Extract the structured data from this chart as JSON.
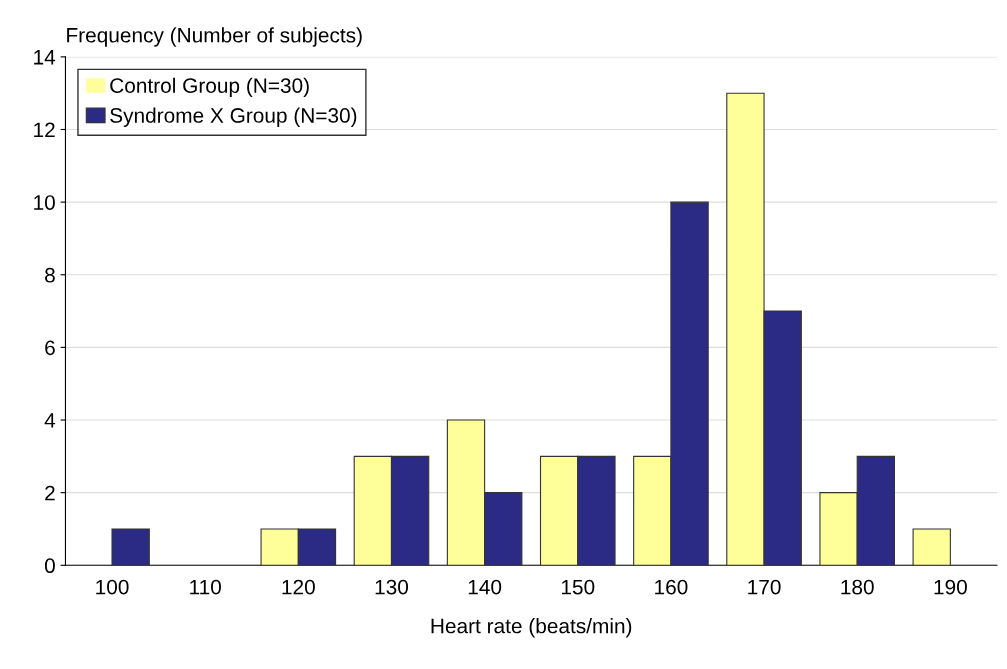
{
  "chart_data": {
    "type": "bar",
    "xlabel": "Heart rate (beats/min)",
    "ylabel": "Frequency (Number of subjects)",
    "categories": [
      "100",
      "110",
      "120",
      "130",
      "140",
      "150",
      "160",
      "170",
      "180",
      "190"
    ],
    "series": [
      {
        "name": "Control Group (N=30)",
        "color": "#ffff99",
        "values": [
          0,
          0,
          1,
          3,
          4,
          3,
          3,
          13,
          2,
          1
        ]
      },
      {
        "name": "Syndrome X Group (N=30)",
        "color": "#2b2b86",
        "values": [
          1,
          0,
          1,
          3,
          2,
          3,
          10,
          7,
          3,
          0
        ]
      }
    ],
    "ylim": [
      0,
      14
    ],
    "yticks": [
      0,
      2,
      4,
      6,
      8,
      10,
      12,
      14
    ],
    "grid": "y",
    "legend": "top left"
  }
}
